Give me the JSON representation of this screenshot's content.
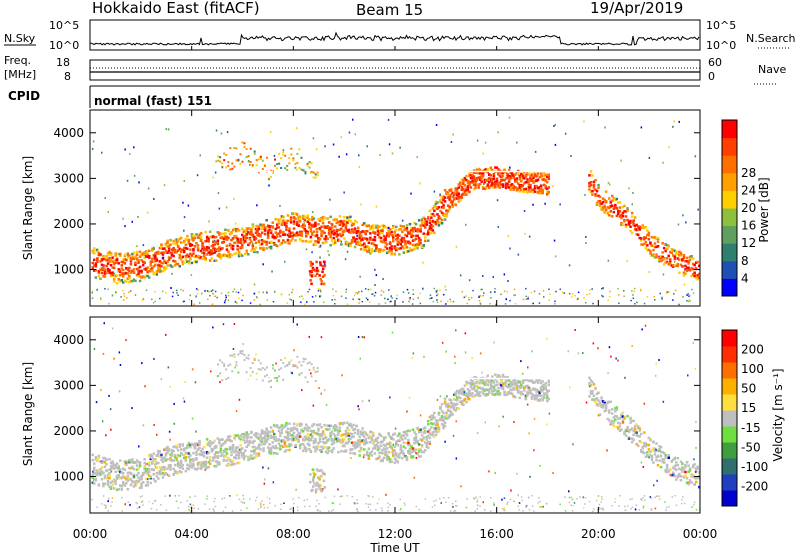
{
  "header": {
    "station": "Hokkaido East (fitACF)",
    "beam": "Beam 15",
    "date": "19/Apr/2019"
  },
  "noise_panel": {
    "left_label": "N.Sky",
    "right_label": "N.Search",
    "ticks_left": [
      "10^5",
      "10^0"
    ],
    "ticks_right": [
      "10^5",
      "10^0"
    ]
  },
  "freq_panel": {
    "left_label_line1": "Freq.",
    "left_label_line2": "[MHz]",
    "right_label": "Nave",
    "ticks_left": [
      "18",
      "8"
    ],
    "ticks_right": [
      "60",
      "0"
    ]
  },
  "cpid_panel": {
    "label": "CPID",
    "mode_text": "normal (fast) 151"
  },
  "power_panel": {
    "ylabel": "Slant Range [km]",
    "yticks": [
      "1000",
      "2000",
      "3000",
      "4000"
    ],
    "colorbar_label": "Power [dB]",
    "colorbar_ticks": [
      "4",
      "8",
      "12",
      "16",
      "20",
      "24",
      "28"
    ],
    "colors": [
      "#0000ff",
      "#1f4fb4",
      "#2f7f6f",
      "#5f9f5f",
      "#8fbf3f",
      "#ffcf00",
      "#ff9f00",
      "#ff6f00",
      "#ff3f00",
      "#ff0000"
    ]
  },
  "velocity_panel": {
    "ylabel": "Slant Range [km]",
    "yticks": [
      "1000",
      "2000",
      "3000",
      "4000"
    ],
    "colorbar_label": "Velocity [m s⁻¹]",
    "colorbar_ticks": [
      "200",
      "100",
      "50",
      "15",
      "-15",
      "-50",
      "-100",
      "-200"
    ],
    "colors": [
      "#0000cf",
      "#1f3fbf",
      "#2f6f6f",
      "#3f9f3f",
      "#6fdf3f",
      "#bfbfbf",
      "#ffdf3f",
      "#ffaf00",
      "#ff6f00",
      "#ff2f00",
      "#ff0000"
    ]
  },
  "xaxis": {
    "label": "Time UT",
    "ticks": [
      "00:00",
      "04:00",
      "08:00",
      "12:00",
      "16:00",
      "20:00",
      "00:00"
    ]
  },
  "chart_data": {
    "type": "heatmap",
    "x": [
      "00:00",
      "04:00",
      "08:00",
      "12:00",
      "16:00",
      "20:00",
      "00:00"
    ],
    "ylim": [
      200,
      4500
    ],
    "yunit": "km",
    "power_scale": [
      4,
      8,
      12,
      16,
      20,
      24,
      28
    ],
    "velocity_scale": [
      200,
      100,
      50,
      15,
      -15,
      -50,
      -100,
      -200
    ],
    "main_echo_band": [
      {
        "t": 0,
        "range": 1200
      },
      {
        "t": 1,
        "range": 1050
      },
      {
        "t": 2,
        "range": 1100
      },
      {
        "t": 3,
        "range": 1350
      },
      {
        "t": 4,
        "range": 1500
      },
      {
        "t": 5,
        "range": 1550
      },
      {
        "t": 6,
        "range": 1650
      },
      {
        "t": 7,
        "range": 1800
      },
      {
        "t": 8,
        "range": 1950
      },
      {
        "t": 9,
        "range": 1850
      },
      {
        "t": 10,
        "range": 1900
      },
      {
        "t": 11,
        "range": 1700
      },
      {
        "t": 12,
        "range": 1650
      },
      {
        "t": 13,
        "range": 1800
      },
      {
        "t": 14,
        "range": 2500
      },
      {
        "t": 15,
        "range": 3000
      },
      {
        "t": 16,
        "range": 3050
      },
      {
        "t": 17,
        "range": 2950
      },
      {
        "t": 18,
        "range": 2900
      }
    ],
    "late_echo_band": [
      {
        "t": 19.6,
        "range": 3000
      },
      {
        "t": 20,
        "range": 2600
      },
      {
        "t": 21,
        "range": 2200
      },
      {
        "t": 22,
        "range": 1600
      },
      {
        "t": 23,
        "range": 1200
      },
      {
        "t": 24,
        "range": 1000
      }
    ],
    "upper_arc": [
      {
        "t": 5,
        "range": 3300
      },
      {
        "t": 6,
        "range": 3600
      },
      {
        "t": 7,
        "range": 3200
      },
      {
        "t": 8,
        "range": 3500
      },
      {
        "t": 9,
        "range": 3200
      }
    ]
  }
}
